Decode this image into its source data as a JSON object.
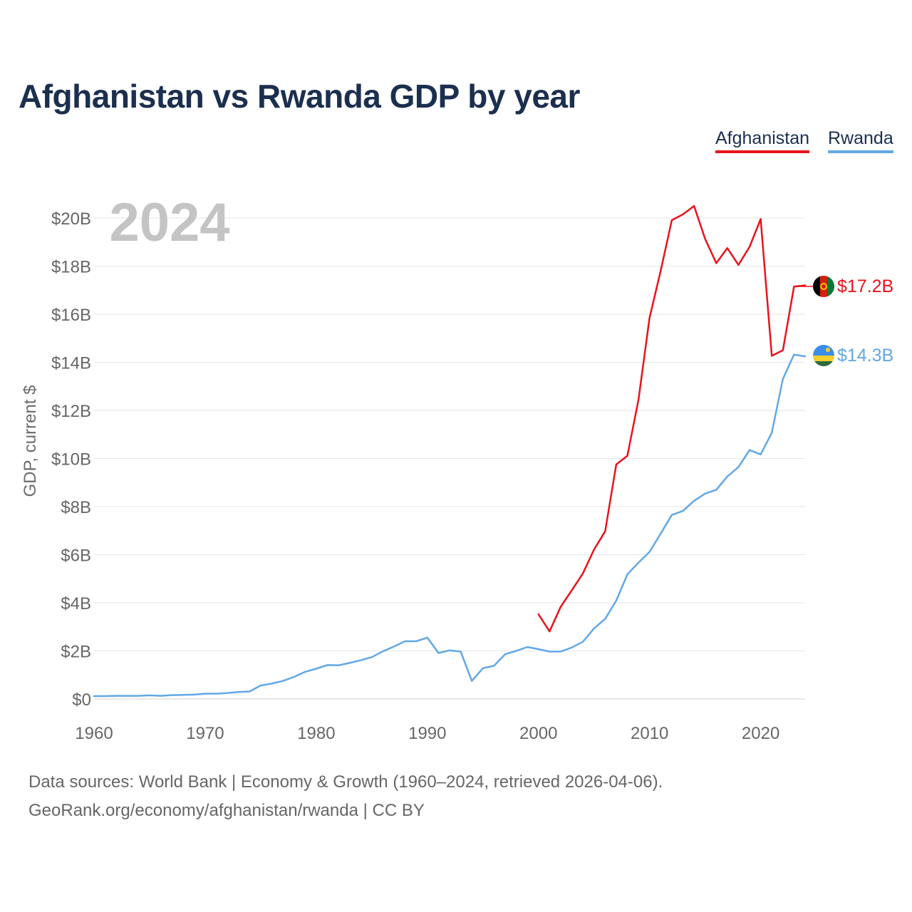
{
  "title": "Afghanistan vs Rwanda GDP by year",
  "legend": [
    {
      "label": "Afghanistan",
      "color": "#e8141b"
    },
    {
      "label": "Rwanda",
      "color": "#62a8e5"
    }
  ],
  "year_watermark": "2024",
  "end_labels": {
    "afghanistan": "$17.2B",
    "rwanda": "$14.3B"
  },
  "source": {
    "line1": "Data sources: World Bank | Economy & Growth (1960–2024, retrieved 2026-04-06).",
    "line2": "GeoRank.org/economy/afghanistan/rwanda | CC BY"
  },
  "chart_data": {
    "type": "line",
    "title": "Afghanistan vs Rwanda GDP by year",
    "xlabel": "",
    "ylabel": "GDP, current $",
    "xlim": [
      1960,
      2024
    ],
    "ylim": [
      0,
      20
    ],
    "y_unit": "billion current US$",
    "grid": true,
    "legend_position": "top-right",
    "x_ticks": [
      1960,
      1970,
      1980,
      1990,
      2000,
      2010,
      2020
    ],
    "y_ticks": [
      {
        "value": 0,
        "label": "$0"
      },
      {
        "value": 2,
        "label": "$2B"
      },
      {
        "value": 4,
        "label": "$4B"
      },
      {
        "value": 6,
        "label": "$6B"
      },
      {
        "value": 8,
        "label": "$8B"
      },
      {
        "value": 10,
        "label": "$10B"
      },
      {
        "value": 12,
        "label": "$12B"
      },
      {
        "value": 14,
        "label": "$14B"
      },
      {
        "value": 16,
        "label": "$16B"
      },
      {
        "value": 18,
        "label": "$18B"
      },
      {
        "value": 20,
        "label": "$20B"
      }
    ],
    "series": [
      {
        "name": "Afghanistan",
        "color": "#e8141b",
        "x": [
          2000,
          2001,
          2002,
          2003,
          2004,
          2005,
          2006,
          2007,
          2008,
          2009,
          2010,
          2011,
          2012,
          2013,
          2014,
          2015,
          2016,
          2017,
          2018,
          2019,
          2020,
          2021,
          2022,
          2023,
          2024
        ],
        "values": [
          3.52,
          2.81,
          3.83,
          4.52,
          5.22,
          6.21,
          6.97,
          9.75,
          10.11,
          12.44,
          15.86,
          17.81,
          19.91,
          20.15,
          20.5,
          19.13,
          18.12,
          18.75,
          18.05,
          18.8,
          19.96,
          14.27,
          14.5,
          17.15,
          17.2
        ]
      },
      {
        "name": "Rwanda",
        "color": "#62a8e5",
        "x": [
          1960,
          1961,
          1962,
          1963,
          1964,
          1965,
          1966,
          1967,
          1968,
          1969,
          1970,
          1971,
          1972,
          1973,
          1974,
          1975,
          1976,
          1977,
          1978,
          1979,
          1980,
          1981,
          1982,
          1983,
          1984,
          1985,
          1986,
          1987,
          1988,
          1989,
          1990,
          1991,
          1992,
          1993,
          1994,
          1995,
          1996,
          1997,
          1998,
          1999,
          2000,
          2001,
          2002,
          2003,
          2004,
          2005,
          2006,
          2007,
          2008,
          2009,
          2010,
          2011,
          2012,
          2013,
          2014,
          2015,
          2016,
          2017,
          2018,
          2019,
          2020,
          2021,
          2022,
          2023,
          2024
        ],
        "values": [
          0.12,
          0.12,
          0.13,
          0.13,
          0.13,
          0.15,
          0.13,
          0.16,
          0.17,
          0.18,
          0.22,
          0.22,
          0.25,
          0.29,
          0.31,
          0.56,
          0.64,
          0.75,
          0.92,
          1.13,
          1.26,
          1.41,
          1.4,
          1.5,
          1.61,
          1.74,
          1.98,
          2.18,
          2.4,
          2.4,
          2.55,
          1.91,
          2.02,
          1.97,
          0.75,
          1.28,
          1.38,
          1.86,
          2.0,
          2.16,
          2.07,
          1.97,
          1.97,
          2.14,
          2.38,
          2.93,
          3.33,
          4.09,
          5.18,
          5.67,
          6.12,
          6.88,
          7.65,
          7.82,
          8.24,
          8.54,
          8.7,
          9.25,
          9.64,
          10.35,
          10.17,
          11.07,
          13.31,
          14.32,
          14.25
        ]
      }
    ]
  }
}
